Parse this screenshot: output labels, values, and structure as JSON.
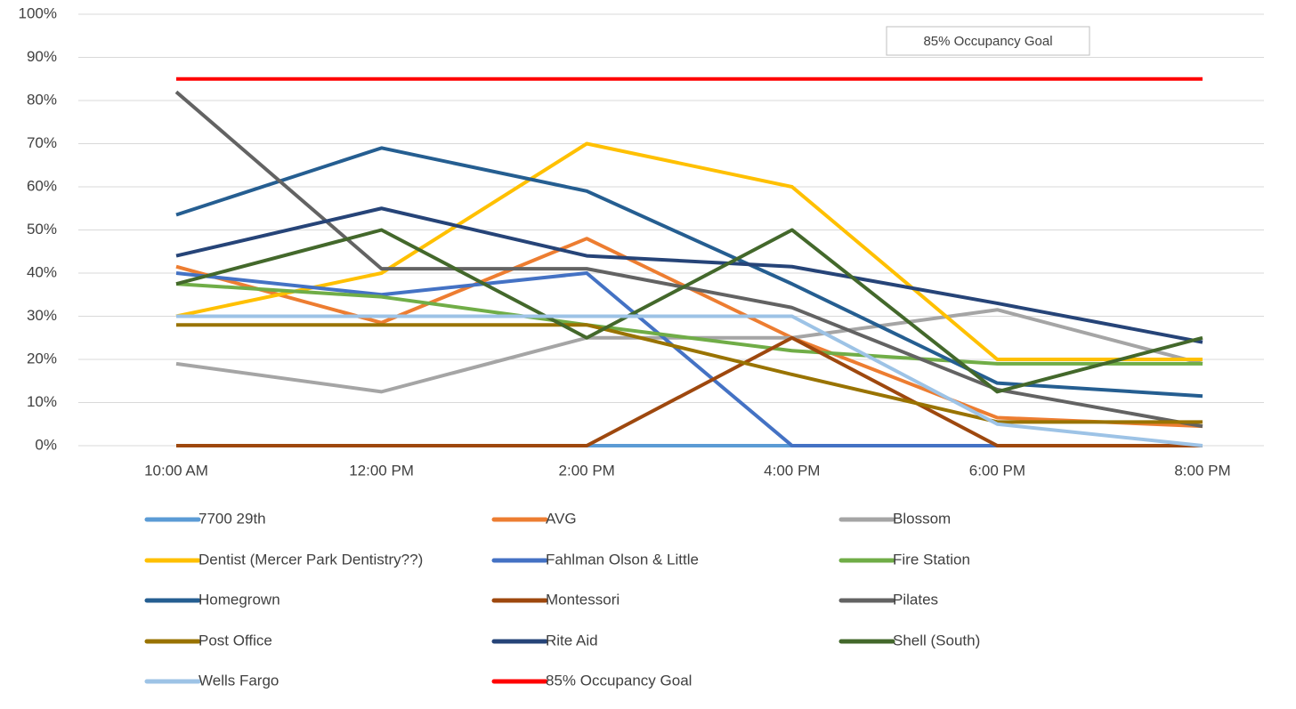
{
  "chart_data": {
    "type": "line",
    "categories": [
      "10:00 AM",
      "12:00 PM",
      "2:00 PM",
      "4:00 PM",
      "6:00 PM",
      "8:00 PM"
    ],
    "ylim": [
      0,
      100
    ],
    "yticks": [
      {
        "value": 0,
        "label": "0%"
      },
      {
        "value": 10,
        "label": "10%"
      },
      {
        "value": 20,
        "label": "20%"
      },
      {
        "value": 30,
        "label": "30%"
      },
      {
        "value": 40,
        "label": "40%"
      },
      {
        "value": 50,
        "label": "50%"
      },
      {
        "value": 60,
        "label": "60%"
      },
      {
        "value": 70,
        "label": "70%"
      },
      {
        "value": 80,
        "label": "80%"
      },
      {
        "value": 90,
        "label": "90%"
      },
      {
        "value": 100,
        "label": "100%"
      }
    ],
    "grid": true,
    "legend": "bottom",
    "annotation": "85% Occupancy Goal",
    "series": [
      {
        "name": "7700 29th",
        "color": "#5b9bd5",
        "values": [
          0,
          0,
          0,
          0,
          0,
          0
        ]
      },
      {
        "name": "AVG",
        "color": "#ed7d31",
        "values": [
          41.5,
          28.5,
          48,
          25,
          6.5,
          4.5
        ]
      },
      {
        "name": "Blossom",
        "color": "#a5a5a5",
        "values": [
          19,
          12.5,
          25,
          25,
          31.5,
          19
        ]
      },
      {
        "name": "Dentist (Mercer Park Dentistry??)",
        "color": "#ffc000",
        "values": [
          30,
          40,
          70,
          60,
          20,
          20
        ]
      },
      {
        "name": "Fahlman Olson & Little",
        "color": "#4472c4",
        "values": [
          40,
          35,
          40,
          0,
          0,
          0
        ]
      },
      {
        "name": "Fire Station",
        "color": "#70ad47",
        "values": [
          37.5,
          34.5,
          28,
          22,
          19,
          19
        ]
      },
      {
        "name": "Homegrown",
        "color": "#255e91",
        "values": [
          53.5,
          69,
          59,
          37.5,
          14.5,
          11.5
        ]
      },
      {
        "name": "Montessori",
        "color": "#9e480e",
        "values": [
          0,
          0,
          0,
          25,
          0,
          0
        ]
      },
      {
        "name": "Pilates",
        "color": "#636363",
        "values": [
          82,
          41,
          41,
          32,
          13,
          4.5
        ]
      },
      {
        "name": "Post Office",
        "color": "#997300",
        "values": [
          28,
          28,
          28,
          16.5,
          5.5,
          5.5
        ]
      },
      {
        "name": "Rite Aid",
        "color": "#264478",
        "values": [
          44,
          55,
          44,
          41.5,
          33,
          24
        ]
      },
      {
        "name": "Shell (South)",
        "color": "#43682b",
        "values": [
          37.5,
          50,
          25,
          50,
          12.5,
          25
        ]
      },
      {
        "name": "Wells Fargo",
        "color": "#9dc3e6",
        "values": [
          30,
          30,
          30,
          30,
          5,
          0
        ]
      },
      {
        "name": "85% Occupancy Goal",
        "color": "#ff0000",
        "values": [
          85,
          85,
          85,
          85,
          85,
          85
        ]
      }
    ]
  }
}
